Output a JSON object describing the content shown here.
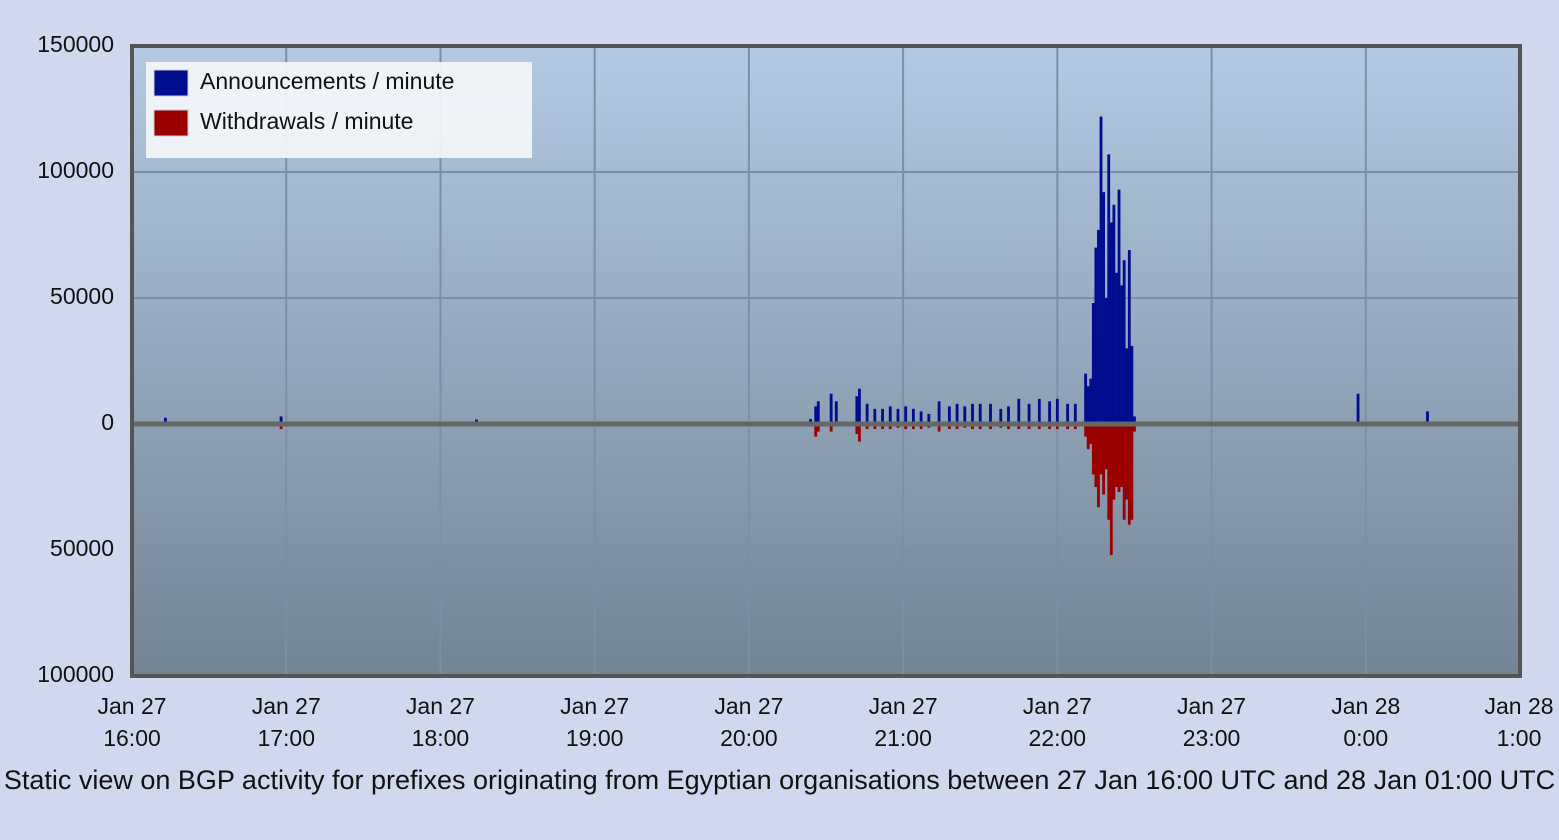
{
  "chart_data": {
    "type": "bar",
    "caption": "Static view on BGP activity for prefixes originating from Egyptian organisations between 27 Jan 16:00 UTC and 28 Jan 01:00 UTC",
    "x": [
      "Jan 27 16:13",
      "Jan 27 16:58",
      "Jan 27 18:14",
      "Jan 27 20:24",
      "Jan 27 20:26",
      "Jan 27 20:27",
      "Jan 27 20:32",
      "Jan 27 20:34",
      "Jan 27 20:42",
      "Jan 27 20:43",
      "Jan 27 20:46",
      "Jan 27 20:49",
      "Jan 27 20:52",
      "Jan 27 20:55",
      "Jan 27 20:58",
      "Jan 27 21:01",
      "Jan 27 21:04",
      "Jan 27 21:07",
      "Jan 27 21:10",
      "Jan 27 21:14",
      "Jan 27 21:18",
      "Jan 27 21:21",
      "Jan 27 21:24",
      "Jan 27 21:27",
      "Jan 27 21:30",
      "Jan 27 21:34",
      "Jan 27 21:38",
      "Jan 27 21:41",
      "Jan 27 21:45",
      "Jan 27 21:49",
      "Jan 27 21:53",
      "Jan 27 21:57",
      "Jan 27 22:00",
      "Jan 27 22:04",
      "Jan 27 22:07",
      "Jan 27 22:11",
      "Jan 27 22:12",
      "Jan 27 22:13",
      "Jan 27 22:14",
      "Jan 27 22:15",
      "Jan 27 22:16",
      "Jan 27 22:17",
      "Jan 27 22:18",
      "Jan 27 22:19",
      "Jan 27 22:20",
      "Jan 27 22:21",
      "Jan 27 22:22",
      "Jan 27 22:23",
      "Jan 27 22:24",
      "Jan 27 22:25",
      "Jan 27 22:26",
      "Jan 27 22:27",
      "Jan 27 22:28",
      "Jan 27 22:29",
      "Jan 27 22:30",
      "Jan 27 23:57",
      "Jan 28 0:24"
    ],
    "series": [
      {
        "name": "Announcements / minute",
        "color": "#000d8f",
        "values": [
          2500,
          3000,
          1800,
          2000,
          7000,
          9000,
          12000,
          9000,
          11000,
          14000,
          8000,
          6000,
          6000,
          7000,
          6000,
          7000,
          6000,
          5000,
          4000,
          9000,
          7000,
          8000,
          7000,
          8000,
          8000,
          8000,
          6000,
          7000,
          10000,
          8000,
          10000,
          9000,
          10000,
          8000,
          8000,
          20000,
          15000,
          18000,
          48000,
          70000,
          77000,
          122000,
          92000,
          50000,
          107000,
          80000,
          87000,
          60000,
          93000,
          55000,
          65000,
          30000,
          69000,
          31000,
          3000,
          12000,
          5000
        ]
      },
      {
        "name": "Withdrawals / minute",
        "color": "#9a0000",
        "values": [
          null,
          -2000,
          null,
          null,
          -5000,
          -3000,
          -3000,
          null,
          -4000,
          -7000,
          -2000,
          -2000,
          -2000,
          -2000,
          -1500,
          -2000,
          -2000,
          -2000,
          -1500,
          -3000,
          -2000,
          -2000,
          -1500,
          -2000,
          -2000,
          -2000,
          -1500,
          -2000,
          -2000,
          -2000,
          -2000,
          -2000,
          -2000,
          -2000,
          -2000,
          -5000,
          -10000,
          -8000,
          -20000,
          -25000,
          -33000,
          -20000,
          -28000,
          -18000,
          -38000,
          -52000,
          -30000,
          -25000,
          -27000,
          -25000,
          -38000,
          -30000,
          -40000,
          -38000,
          -3000,
          null,
          null
        ]
      }
    ],
    "xlim": [
      "Jan 27 16:00",
      "Jan 28 1:00"
    ],
    "xticks": [
      "Jan 27 16:00",
      "Jan 27 17:00",
      "Jan 27 18:00",
      "Jan 27 19:00",
      "Jan 27 20:00",
      "Jan 27 21:00",
      "Jan 27 22:00",
      "Jan 27 23:00",
      "Jan 28 0:00",
      "Jan 28 1:00"
    ],
    "ylim": [
      -100000,
      150000
    ],
    "yticks": [
      150000,
      100000,
      50000,
      0,
      {
        "value": -50000,
        "label": "50000"
      },
      {
        "value": -100000,
        "label": "100000"
      }
    ],
    "grid": true,
    "legend": "top-left"
  }
}
